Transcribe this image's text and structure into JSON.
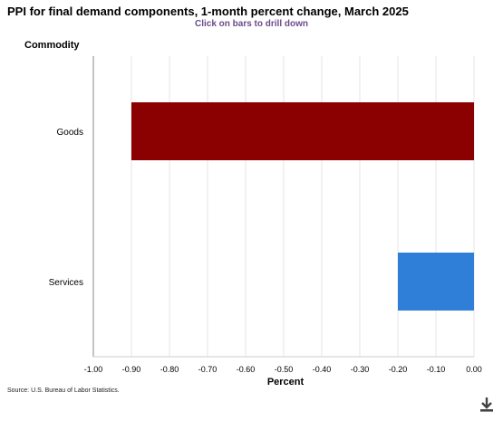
{
  "chart_data": {
    "type": "bar",
    "orientation": "horizontal",
    "title": "PPI for final demand components, 1-month percent change, March 2025",
    "subtitle": "Click on bars to drill down",
    "category_axis_title": "Commodity",
    "xlabel": "Percent",
    "xlim": [
      -1.0,
      0.0
    ],
    "x_ticks": [
      "-1.00",
      "-0.90",
      "-0.80",
      "-0.70",
      "-0.60",
      "-0.50",
      "-0.40",
      "-0.30",
      "-0.20",
      "-0.10",
      "0.00"
    ],
    "grid": true,
    "categories": [
      "Goods",
      "Services"
    ],
    "values": [
      -0.9,
      -0.2
    ],
    "colors": [
      "#8b0000",
      "#2f7ed8"
    ]
  },
  "source": "Source: U.S. Bureau of Labor Statistics.",
  "download_icon": "download-icon"
}
